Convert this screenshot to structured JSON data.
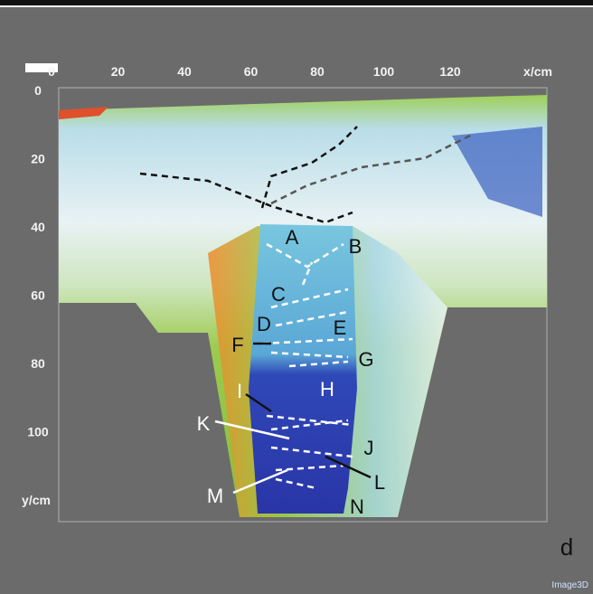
{
  "axes": {
    "x_ticks": [
      "0",
      "20",
      "40",
      "60",
      "80",
      "100",
      "120"
    ],
    "x_label": "x/cm",
    "y_ticks": [
      "0",
      "20",
      "40",
      "60",
      "80",
      "100"
    ],
    "y_label": "y/cm"
  },
  "region_labels": [
    "A",
    "B",
    "C",
    "D",
    "E",
    "F",
    "G",
    "H",
    "I",
    "J",
    "K",
    "L",
    "M",
    "N"
  ],
  "panel_label": "d",
  "watermark": "Image3D"
}
